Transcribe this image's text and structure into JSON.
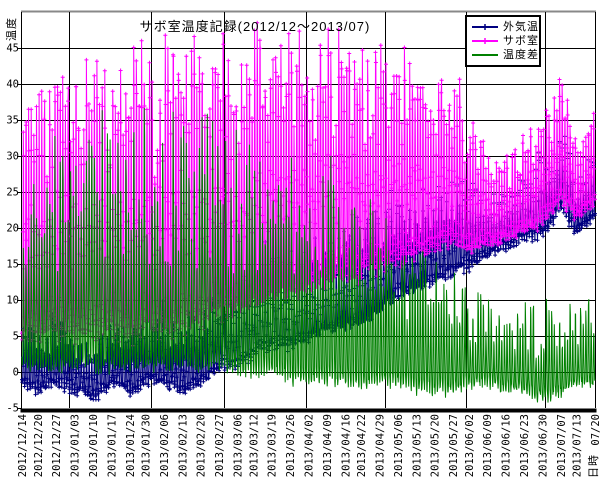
{
  "page": {
    "background": "#ffffff"
  },
  "chart_data": {
    "type": "line",
    "title": "サボ室温度記録(2012/12～2013/07)",
    "xlabel": "日時",
    "ylabel": "温度",
    "ylim": [
      -5,
      50
    ],
    "grid": true,
    "legend_position": "top-right-inside",
    "colors": {
      "outdoor": "#000080",
      "room": "#ff00ff",
      "diff": "#008000",
      "gridline": "#000000",
      "top_border": "#888888",
      "axis": "#000000",
      "plot_background": "#ffffff"
    },
    "y_ticks": [
      -5,
      0,
      5,
      10,
      15,
      20,
      25,
      30,
      35,
      40,
      45
    ],
    "x_tick_labels": [
      "2012/12/14",
      "2012/12/20",
      "2012/12/27",
      "2013/01/03",
      "2013/01/10",
      "2013/01/17",
      "2013/01/24",
      "2013/01/30",
      "2013/02/06",
      "2013/02/13",
      "2013/02/20",
      "2013/02/27",
      "2013/03/06",
      "2013/03/12",
      "2013/03/19",
      "2013/03/26",
      "2013/04/02",
      "2013/04/09",
      "2013/04/16",
      "2013/04/22",
      "2013/04/29",
      "2013/05/06",
      "2013/05/13",
      "2013/05/20",
      "2013/05/27",
      "2013/06/02",
      "2013/06/09",
      "2013/06/16",
      "2013/06/23",
      "2013/06/30",
      "2013/07/07",
      "2013/07/13",
      "07/20"
    ],
    "x_tick_days": [
      0,
      6,
      13,
      20,
      27,
      34,
      41,
      47,
      54,
      61,
      68,
      75,
      82,
      88,
      95,
      102,
      109,
      116,
      123,
      129,
      136,
      143,
      150,
      157,
      164,
      170,
      177,
      184,
      191,
      198,
      205,
      211,
      218
    ],
    "x_range_days": 218,
    "month_gridline_days": [
      18,
      49,
      77,
      108,
      138,
      169,
      199
    ],
    "series": [
      {
        "name": "外気温",
        "color": "#000080",
        "marker": "+",
        "style": "daily-oscillation",
        "envelope_days": "x_tick_days",
        "envelope_min": [
          -2,
          -3,
          -2,
          -3,
          -4,
          -2,
          -3,
          -2,
          -2,
          -3,
          -2,
          0,
          0,
          2,
          3,
          3,
          4,
          5,
          6,
          6,
          8,
          10,
          11,
          12,
          13,
          14,
          16,
          17,
          18,
          19,
          22,
          19,
          21
        ],
        "envelope_max": [
          8,
          7,
          8,
          7,
          6,
          8,
          7,
          9,
          9,
          8,
          10,
          12,
          14,
          16,
          18,
          17,
          18,
          20,
          21,
          22,
          23,
          24,
          26,
          27,
          28,
          27,
          26,
          26,
          28,
          30,
          35,
          26,
          33
        ]
      },
      {
        "name": "サボ室",
        "color": "#ff00ff",
        "marker": "+",
        "style": "daily-oscillation",
        "envelope_days": "x_tick_days",
        "envelope_min": [
          4,
          3,
          4,
          3,
          3,
          4,
          3,
          4,
          4,
          4,
          5,
          6,
          7,
          8,
          9,
          9,
          10,
          11,
          12,
          12,
          13,
          14,
          15,
          16,
          17,
          16,
          17,
          18,
          19,
          20,
          23,
          21,
          23
        ],
        "envelope_max": [
          40,
          38,
          42,
          41,
          43,
          42,
          44,
          45,
          46,
          44,
          46,
          47,
          47,
          46,
          47,
          46,
          47,
          47,
          46,
          45,
          44,
          43,
          42,
          41,
          40,
          36,
          32,
          31,
          33,
          36,
          42,
          30,
          38
        ]
      },
      {
        "name": "温度差",
        "color": "#008000",
        "marker": "none",
        "style": "daily-oscillation",
        "envelope_days": "x_tick_days",
        "envelope_min": [
          0,
          0,
          0,
          0,
          0,
          0,
          0,
          0,
          0,
          0,
          0,
          0,
          -1,
          -1,
          -1,
          -2,
          -2,
          -2,
          -2,
          -3,
          -2,
          -2,
          -3,
          -3,
          -3,
          -2,
          -2,
          -3,
          -3,
          -4,
          -3,
          -2,
          -2
        ],
        "envelope_max": [
          33,
          32,
          34,
          34,
          35,
          34,
          35,
          35,
          35,
          34,
          35,
          34,
          33,
          32,
          31,
          30,
          29,
          28,
          26,
          25,
          24,
          20,
          18,
          16,
          14,
          12,
          10,
          9,
          10,
          9,
          8,
          9,
          12
        ]
      }
    ]
  }
}
